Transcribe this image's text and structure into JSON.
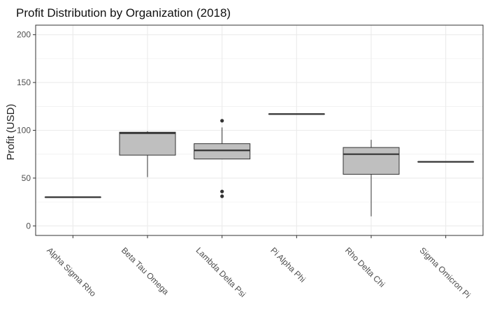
{
  "chart_data": {
    "type": "box",
    "title": "Profit Distribution by Organization (2018)",
    "xlabel": "",
    "ylabel": "Profit (USD)",
    "ylim": [
      -10,
      210
    ],
    "yticks": [
      0,
      50,
      100,
      150,
      200
    ],
    "grid": true,
    "legend": "none",
    "colors": {
      "box_fill": "#bfbfbf",
      "box_stroke": "#333333",
      "grid": "#ebebeb",
      "panel_border": "#333333"
    },
    "categories": [
      "Alpha Sigma Rho",
      "Beta Tau Omega",
      "Lambda Delta Psi",
      "Pi Alpha Phi",
      "Rho Delta Chi",
      "Sigma Omicron Pi"
    ],
    "boxes": [
      {
        "category": "Alpha Sigma Rho",
        "min": 30,
        "q1": 30,
        "median": 30,
        "q3": 30,
        "max": 30,
        "outliers": []
      },
      {
        "category": "Beta Tau Omega",
        "min": 51,
        "q1": 74,
        "median": 97,
        "q3": 98,
        "max": 99,
        "outliers": []
      },
      {
        "category": "Lambda Delta Psi",
        "min": 70,
        "q1": 70,
        "median": 79,
        "q3": 86,
        "max": 103,
        "outliers": [
          110,
          36,
          31
        ]
      },
      {
        "category": "Pi Alpha Phi",
        "min": 117,
        "q1": 117,
        "median": 117,
        "q3": 117,
        "max": 117,
        "outliers": []
      },
      {
        "category": "Rho Delta Chi",
        "min": 10,
        "q1": 54,
        "median": 75,
        "q3": 82,
        "max": 90,
        "outliers": []
      },
      {
        "category": "Sigma Omicron Pi",
        "min": 67,
        "q1": 67,
        "median": 67,
        "q3": 67,
        "max": 67,
        "outliers": []
      }
    ]
  }
}
